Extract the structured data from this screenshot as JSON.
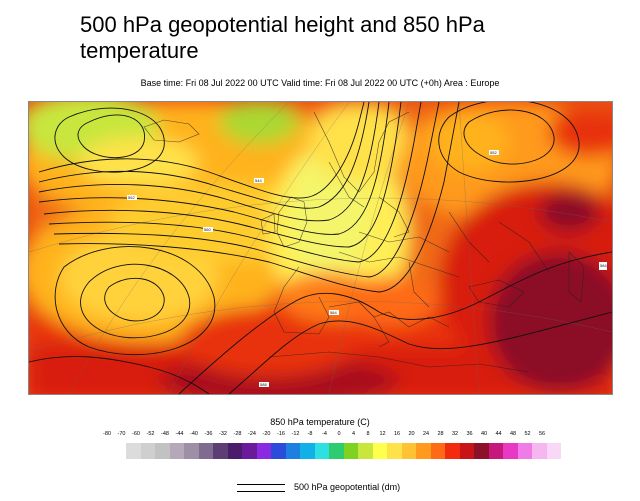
{
  "title": "500 hPa geopotential height and 850 hPa temperature",
  "subtitle": "Base time: Fri 08 Jul 2022 00 UTC Valid time: Fri 08 Jul 2022 00 UTC (+0h) Area : Europe",
  "legend": {
    "title": "850 hPa temperature (C)",
    "ticks": [
      "-80",
      "-70",
      "-60",
      "-52",
      "-48",
      "-44",
      "-40",
      "-36",
      "-32",
      "-28",
      "-24",
      "-20",
      "-16",
      "-12",
      "-8",
      "-4",
      "0",
      "4",
      "8",
      "12",
      "16",
      "20",
      "24",
      "28",
      "32",
      "36",
      "40",
      "44",
      "48",
      "52",
      "56"
    ],
    "colors": [
      "#dcdcdc",
      "#cfcfcf",
      "#c2c2c2",
      "#b5a9b9",
      "#9d8fa6",
      "#7e6b8f",
      "#5c3d74",
      "#4b1c6c",
      "#6a1b9a",
      "#8a2be2",
      "#2b4cd9",
      "#1e7fe0",
      "#12b0e8",
      "#2fe0e0",
      "#2ecc71",
      "#7fd320",
      "#c8e63c",
      "#ffff4d",
      "#ffe14a",
      "#ffc233",
      "#ff9a1f",
      "#ff6a14",
      "#f22a0e",
      "#c81414",
      "#8b1028",
      "#c6187a",
      "#e838c4",
      "#f07ae8",
      "#f6b6f0",
      "#f8d8f6"
    ],
    "contour_label": "500 hPa geopotential (dm)"
  }
}
